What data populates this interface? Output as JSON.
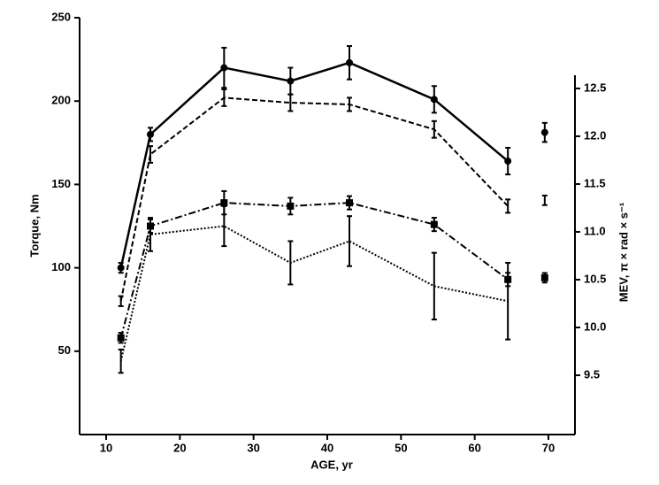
{
  "chart_data": {
    "type": "line",
    "xlabel": "AGE, yr",
    "ylabel": "Torque, Nm",
    "y2label": "MEV, π × rad × s⁻¹",
    "x": [
      12,
      16,
      26,
      35,
      43,
      54.5,
      64.5
    ],
    "series": [
      {
        "color": "#000000",
        "dash": "solid",
        "marker": "circle",
        "values": [
          100,
          180,
          220,
          212,
          223,
          201,
          164
        ],
        "errors": [
          3,
          4,
          12,
          8,
          10,
          8,
          8
        ]
      },
      {
        "color": "#000000",
        "dash": "dashed",
        "marker": "none",
        "values": [
          80,
          168,
          202,
          199,
          198,
          183,
          137
        ],
        "errors": [
          3,
          5,
          5,
          5,
          4,
          5,
          4
        ]
      },
      {
        "color": "#000000",
        "dash": "dashdot",
        "marker": "square",
        "values": [
          58,
          125,
          139,
          137,
          139,
          126,
          93
        ],
        "errors": [
          3,
          4,
          7,
          5,
          4,
          4,
          4
        ]
      },
      {
        "color": "#000000",
        "dash": "dotted",
        "marker": "none",
        "values": [
          44,
          120,
          125,
          103,
          116,
          89,
          80
        ],
        "errors": [
          7,
          10,
          12,
          13,
          15,
          20,
          23
        ]
      }
    ],
    "mev_points": {
      "axis": "y2",
      "x": [
        69.5,
        69.5,
        69.5
      ],
      "values": [
        12.04,
        11.33,
        10.52
      ],
      "errors": [
        0.1,
        0.05,
        0.05
      ],
      "markers": [
        "circle",
        "none",
        "square"
      ]
    },
    "xlim": [
      6.4,
      73.6
    ],
    "xticks": [
      10,
      20,
      30,
      40,
      50,
      60,
      70
    ],
    "ylim": [
      0,
      250
    ],
    "yticks": [
      50,
      100,
      150,
      200,
      250
    ],
    "y2lim": [
      8.88,
      13.24
    ],
    "y2ticks": [
      9.5,
      {
        "value": 10,
        "label": "10.0"
      },
      10.5,
      {
        "value": 11,
        "label": "11.0"
      },
      11.5,
      {
        "value": 12,
        "label": "12.0"
      },
      12.5
    ]
  }
}
